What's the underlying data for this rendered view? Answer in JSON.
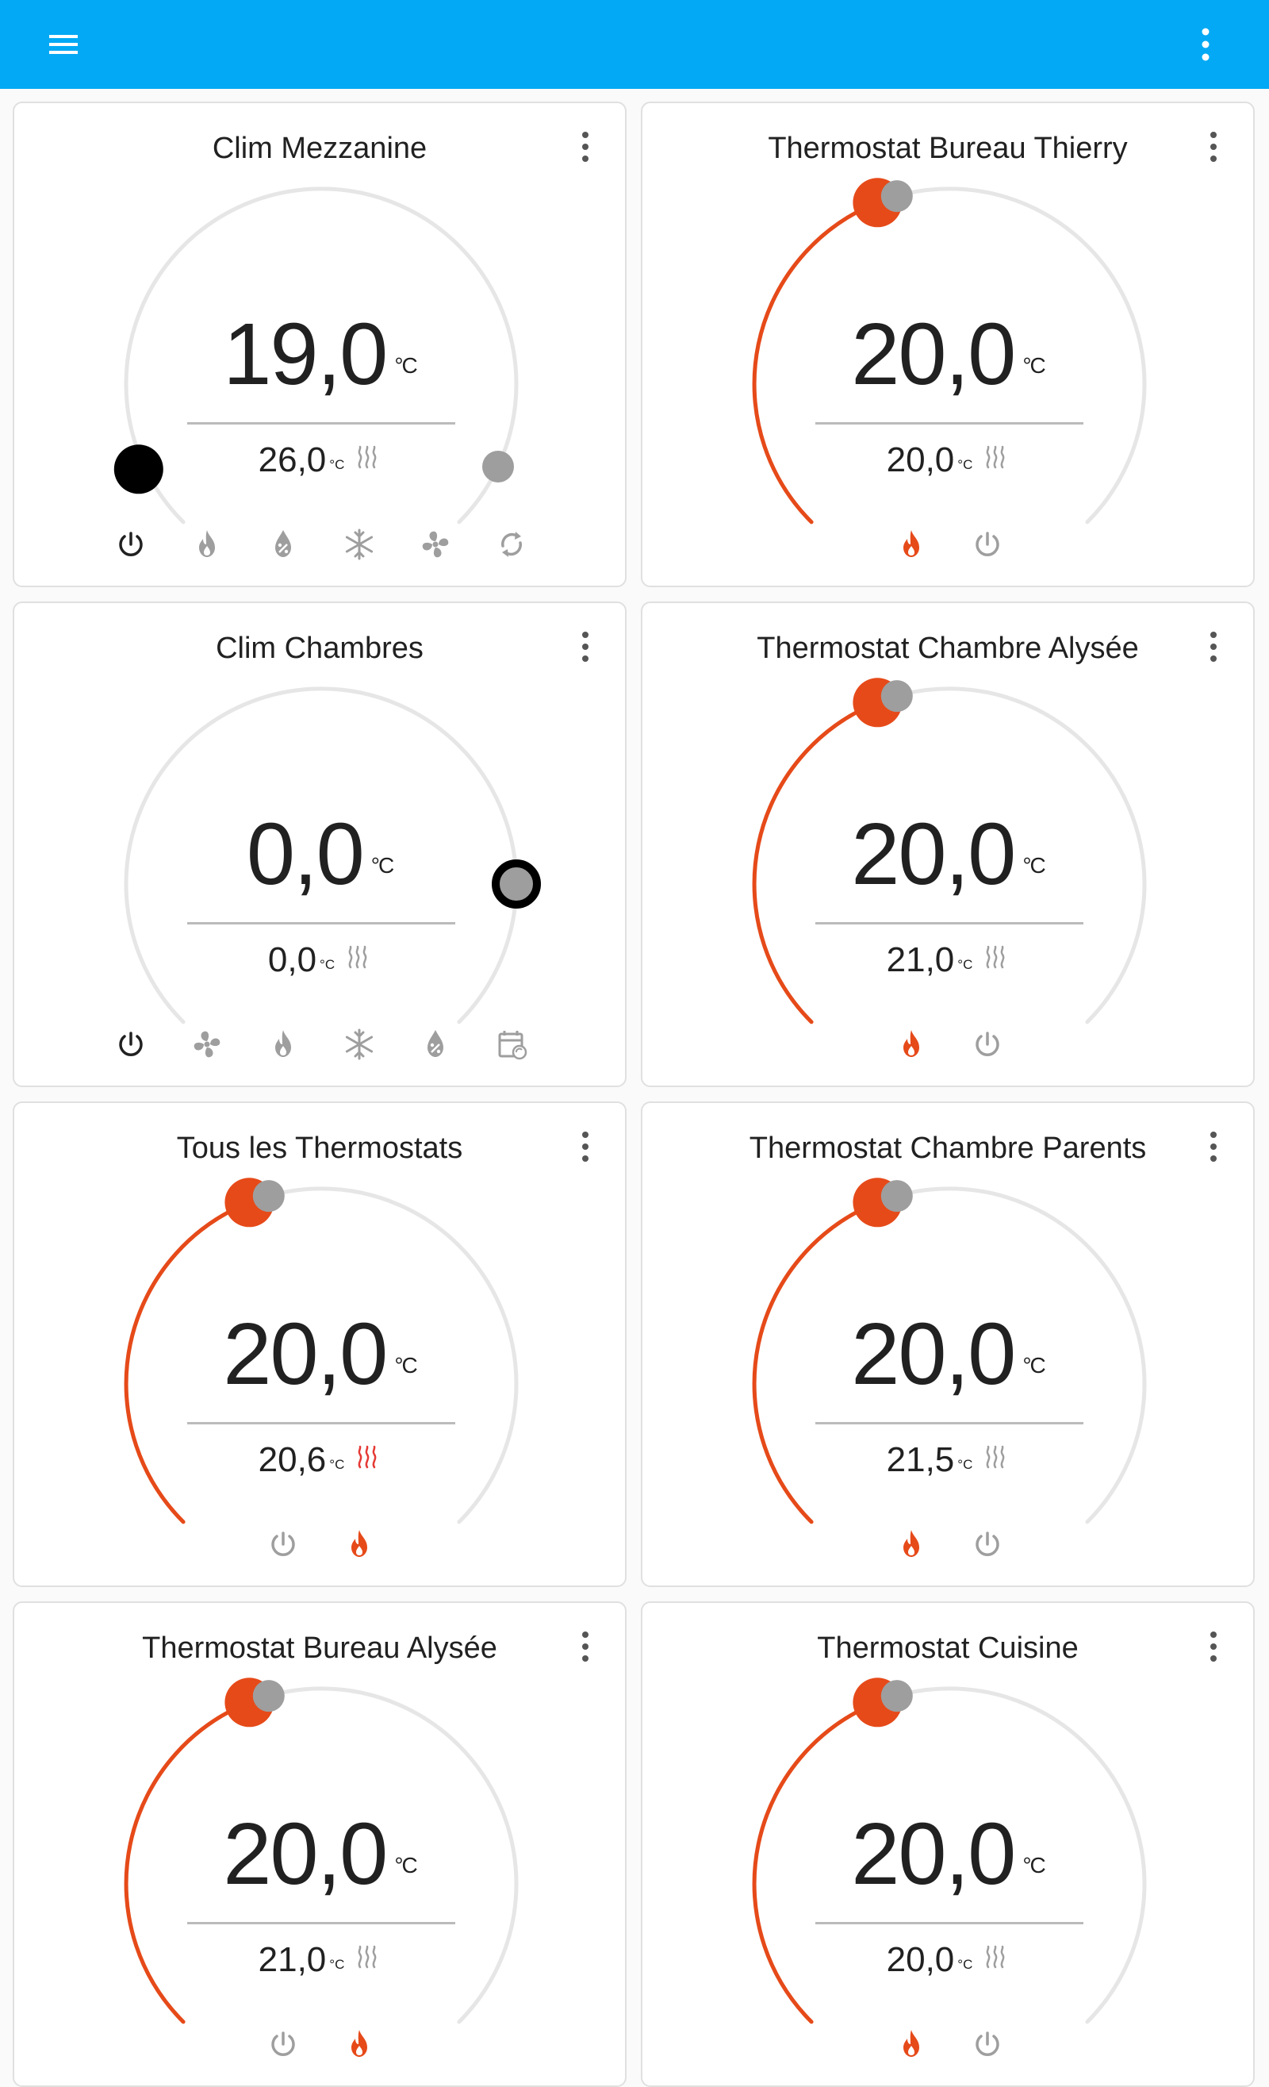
{
  "colors": {
    "accent": "#03a9f4",
    "heat": "#e64a19",
    "track": "#e6e6e6",
    "inactive": "#9e9e9e",
    "active": "#212121"
  },
  "appbar": {
    "menu_icon": "hamburger-menu-icon",
    "more_icon": "more-vertical-icon"
  },
  "cards": [
    {
      "title": "Clim Mezzanine",
      "target": "19,0",
      "unit": "°C",
      "current": "26,0",
      "current_unit": "°C",
      "heating": false,
      "dial": "range",
      "modes": [
        "power",
        "flame",
        "water-percent",
        "snowflake",
        "fan",
        "autorenew"
      ],
      "active_mode": 0
    },
    {
      "title": "Thermostat Bureau Thierry",
      "target": "20,0",
      "unit": "°C",
      "current": "20,0",
      "current_unit": "°C",
      "heating": false,
      "dial": "heat",
      "level": 0.42,
      "modes": [
        "flame",
        "power"
      ],
      "active_mode": 0
    },
    {
      "title": "Clim Chambres",
      "target": "0,0",
      "unit": "°C",
      "current": "0,0",
      "current_unit": "°C",
      "heating": false,
      "dial": "off",
      "modes": [
        "power",
        "fan",
        "flame",
        "snowflake",
        "water-percent",
        "calendar-sync"
      ],
      "active_mode": 0
    },
    {
      "title": "Thermostat Chambre Alysée",
      "target": "20,0",
      "unit": "°C",
      "current": "21,0",
      "current_unit": "°C",
      "heating": false,
      "dial": "heat",
      "level": 0.42,
      "modes": [
        "flame",
        "power"
      ],
      "active_mode": 0
    },
    {
      "title": "Tous les Thermostats",
      "target": "20,0",
      "unit": "°C",
      "current": "20,6",
      "current_unit": "°C",
      "heating": true,
      "dial": "heat",
      "level": 0.42,
      "modes": [
        "power",
        "flame"
      ],
      "active_mode": 1
    },
    {
      "title": "Thermostat Chambre Parents",
      "target": "20,0",
      "unit": "°C",
      "current": "21,5",
      "current_unit": "°C",
      "heating": false,
      "dial": "heat",
      "level": 0.42,
      "modes": [
        "flame",
        "power"
      ],
      "active_mode": 0
    },
    {
      "title": "Thermostat Bureau Alysée",
      "target": "20,0",
      "unit": "°C",
      "current": "21,0",
      "current_unit": "°C",
      "heating": false,
      "dial": "heat",
      "level": 0.42,
      "modes": [
        "power",
        "flame"
      ],
      "active_mode": 1
    },
    {
      "title": "Thermostat Cuisine",
      "target": "20,0",
      "unit": "°C",
      "current": "20,0",
      "current_unit": "°C",
      "heating": false,
      "dial": "heat",
      "level": 0.42,
      "modes": [
        "flame",
        "power"
      ],
      "active_mode": 0
    }
  ]
}
